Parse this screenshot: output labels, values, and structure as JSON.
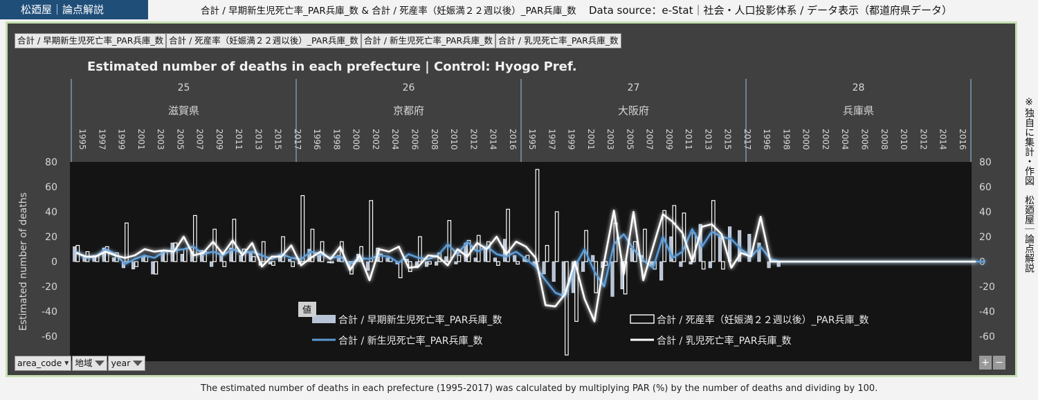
{
  "header": {
    "brand": "松廼屋｜論点解説",
    "title": "合計 / 早期新生児死亡率_PAR兵庫_数 & 合計 / 死産率（妊娠満２２週以後）_PAR兵庫_数",
    "source": "Data source：e-Stat｜社会・人口投影体系 / データ表示（都道府県データ）"
  },
  "tabs": [
    "合計 / 早期新生児死亡率_PAR兵庫_数",
    "合計 / 死産率（妊娠満２２週以後）_PAR兵庫_数",
    "合計 / 新生児死亡率_PAR兵庫_数",
    "合計 / 乳児死亡率_PAR兵庫_数"
  ],
  "side_note": "※独自に集計・作図　松廼屋｜論点解説",
  "footer": "The estimated number of deaths in each prefecture (1995-2017) was calculated by multiplying PAR (%) by the number of deaths and dividing by 100.",
  "filters": {
    "area_code": "area_code",
    "region": "地域",
    "year": "year"
  },
  "value_button": "値",
  "zoom": {
    "plus": "+",
    "minus": "−"
  },
  "chart_data": {
    "type": "bar",
    "title": "Estimated number of deaths in each prefecture | Control: Hyogo Pref.",
    "ylabel": "Estimated number of deaths",
    "ylim": [
      -80,
      80
    ],
    "yticks": [
      80,
      60,
      40,
      20,
      0,
      -20,
      -40,
      -60
    ],
    "groups": [
      {
        "code": "25",
        "name": "滋賀県",
        "years": [
          "1995",
          "1997",
          "1999",
          "2001",
          "2003",
          "2005",
          "2007",
          "2009",
          "2011",
          "2013",
          "2015",
          "2017"
        ]
      },
      {
        "code": "26",
        "name": "京都府",
        "years": [
          "1996",
          "1998",
          "2000",
          "2002",
          "2004",
          "2006",
          "2008",
          "2010",
          "2012",
          "2014",
          "2016"
        ]
      },
      {
        "code": "27",
        "name": "大阪府",
        "years": [
          "1995",
          "1997",
          "1999",
          "2001",
          "2003",
          "2005",
          "2007",
          "2009",
          "2011",
          "2013",
          "2015",
          "2017"
        ]
      },
      {
        "code": "28",
        "name": "兵庫県",
        "years": [
          "1996",
          "1998",
          "2000",
          "2002",
          "2004",
          "2006",
          "2008",
          "2010",
          "2012",
          "2014",
          "2016"
        ]
      }
    ],
    "x_start": 1995,
    "x_end": 2017,
    "series": [
      {
        "name": "合計 / 早期新生児死亡率_PAR兵庫_数",
        "kind": "bar-filled",
        "color": "#b8c4d6",
        "values": [
          12,
          4,
          5,
          11,
          3,
          -5,
          -6,
          4,
          -10,
          8,
          15,
          6,
          8,
          9,
          -4,
          5,
          11,
          5,
          7,
          -3,
          -2,
          4,
          2,
          -2,
          10,
          5,
          -1,
          5,
          -3,
          6,
          -7,
          11,
          3,
          -2,
          2,
          -5,
          -4,
          -3,
          4,
          -2,
          15,
          3,
          12,
          3,
          18,
          5,
          4,
          -3,
          -10,
          -16,
          -28,
          -25,
          -8,
          5,
          -5,
          -28,
          -22,
          11,
          5,
          -3,
          -15,
          20,
          -4,
          -2,
          30,
          -5,
          20,
          28,
          25,
          22,
          15,
          -5,
          -4,
          0,
          0,
          0,
          0,
          0,
          0,
          0,
          0,
          0,
          0,
          0,
          0,
          0,
          0,
          0,
          0,
          0,
          0,
          0,
          0,
          0,
          0,
          0
        ]
      },
      {
        "name": "合計 / 死産率（妊娠満２２週以後）_PAR兵庫_数",
        "kind": "bar-outline",
        "color": "#ffffff",
        "values": [
          13,
          8,
          5,
          12,
          7,
          31,
          -4,
          4,
          -10,
          8,
          15,
          10,
          37,
          8,
          26,
          -4,
          34,
          10,
          4,
          16,
          -3,
          20,
          -4,
          53,
          26,
          16,
          -1,
          16,
          -10,
          12,
          49,
          6,
          3,
          -13,
          -8,
          20,
          -2,
          7,
          33,
          5,
          17,
          21,
          16,
          -3,
          42,
          -2,
          5,
          74,
          13,
          40,
          -75,
          -48,
          25,
          -25,
          -3,
          31,
          -26,
          16,
          26,
          -6,
          41,
          45,
          39,
          23,
          -6,
          49,
          -6,
          0,
          0,
          0,
          0,
          0,
          0,
          0,
          0,
          0,
          0,
          0,
          0,
          0,
          0,
          0,
          0,
          0,
          0,
          0,
          0,
          0,
          0,
          0
        ]
      },
      {
        "name": "合計 / 新生児死亡率_PAR兵庫_数",
        "kind": "line",
        "color": "#5b9bd5",
        "values": [
          8,
          3,
          4,
          10,
          6,
          -2,
          2,
          5,
          3,
          8,
          9,
          10,
          12,
          6,
          8,
          5,
          10,
          7,
          8,
          5,
          2,
          6,
          3,
          2,
          8,
          6,
          3,
          4,
          -2,
          3,
          2,
          5,
          4,
          -1,
          6,
          3,
          2,
          5,
          14,
          6,
          16,
          8,
          12,
          6,
          4,
          8,
          2,
          -4,
          -15,
          -25,
          -28,
          -4,
          10,
          -8,
          -20,
          14,
          22,
          10,
          1,
          -5,
          20,
          3,
          8,
          26,
          12,
          24,
          20,
          18,
          10,
          4,
          12,
          2,
          0,
          0,
          0,
          0,
          0,
          0,
          0,
          0,
          0,
          0,
          0,
          0,
          0,
          0,
          0,
          0,
          0,
          0,
          0,
          0,
          0,
          0
        ]
      },
      {
        "name": "合計 / 乳児死亡率_PAR兵庫_数",
        "kind": "line",
        "color": "#ffffff",
        "values": [
          7,
          4,
          4,
          8,
          5,
          3,
          5,
          10,
          8,
          9,
          8,
          20,
          5,
          7,
          16,
          6,
          17,
          5,
          15,
          -4,
          4,
          4,
          13,
          -3,
          3,
          8,
          2,
          12,
          -7,
          5,
          -15,
          10,
          8,
          12,
          -5,
          -4,
          5,
          4,
          -3,
          10,
          4,
          15,
          10,
          20,
          6,
          16,
          12,
          3,
          -35,
          -36,
          -26,
          0,
          -30,
          -48,
          0,
          41,
          -10,
          40,
          -15,
          12,
          38,
          32,
          23,
          0,
          28,
          30,
          22,
          -5,
          7,
          4,
          36,
          0,
          0,
          0,
          0,
          0,
          0,
          0,
          0,
          0,
          0,
          0,
          0,
          0,
          0,
          0,
          0,
          0,
          0,
          0,
          0,
          0,
          0
        ]
      }
    ]
  }
}
